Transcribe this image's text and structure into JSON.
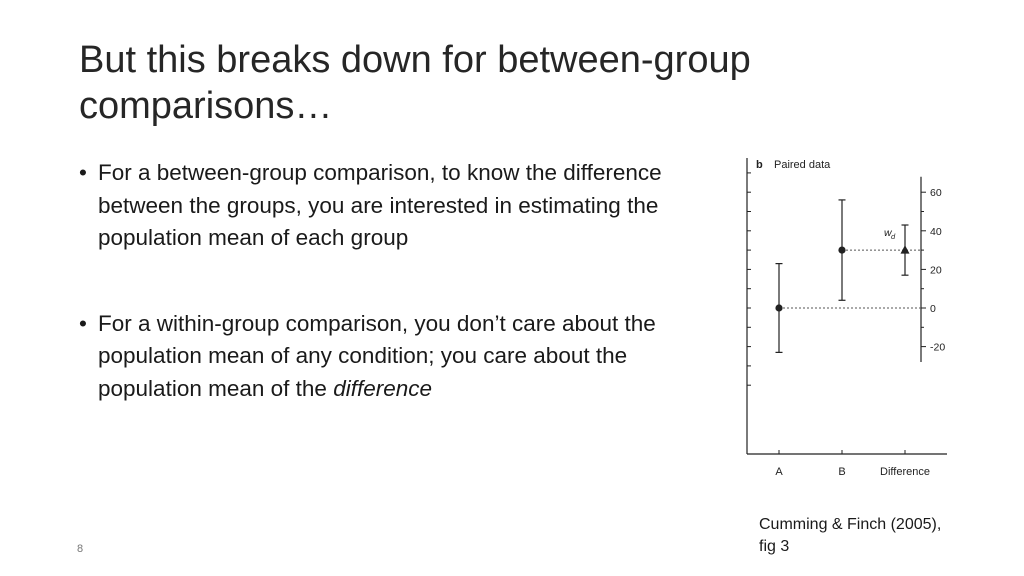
{
  "slide": {
    "title": "But this breaks down for between-group comparisons…",
    "bullets": [
      {
        "symbol": "•",
        "text": "For a between-group comparison, to know the difference between the groups, you are interested in estimating the population mean of each group"
      },
      {
        "symbol": "•",
        "text_plain": "For a within-group comparison, you don’t care about the population mean of any condition; you care about the population mean of the ",
        "text_emph": "difference"
      }
    ],
    "caption": "Cumming & Finch (2005), fig 3",
    "page_number": "8"
  },
  "chart_data": {
    "type": "scatter",
    "panel_letter": "b",
    "title": "Paired data",
    "categories": [
      "A",
      "B",
      "Difference"
    ],
    "left_axis": {
      "lim": [
        -48,
        110
      ],
      "ticks": [
        -40,
        -30,
        -20,
        -10,
        0,
        10,
        20,
        30,
        40,
        50,
        60,
        70,
        80,
        90,
        100
      ]
    },
    "right_axis": {
      "ticks": [
        60,
        40,
        20,
        0,
        -20
      ],
      "tick_labels": [
        "60",
        "40",
        "20",
        "0",
        "-20"
      ],
      "anchor": "difference-zero-at-A-mean"
    },
    "series": [
      {
        "marker": "circle",
        "points": [
          {
            "category": "A",
            "mean": 0,
            "ci_low": -23,
            "ci_high": 23
          },
          {
            "category": "B",
            "mean": 30,
            "ci_low": 4,
            "ci_high": 56
          }
        ]
      },
      {
        "marker": "triangle",
        "axis": "right",
        "points": [
          {
            "category": "Difference",
            "mean": 30,
            "ci_low": 17,
            "ci_high": 43
          }
        ]
      }
    ],
    "annotations": [
      {
        "text": "w",
        "subscript": "d",
        "near": "Difference"
      }
    ],
    "grid": false,
    "legend": "none"
  }
}
